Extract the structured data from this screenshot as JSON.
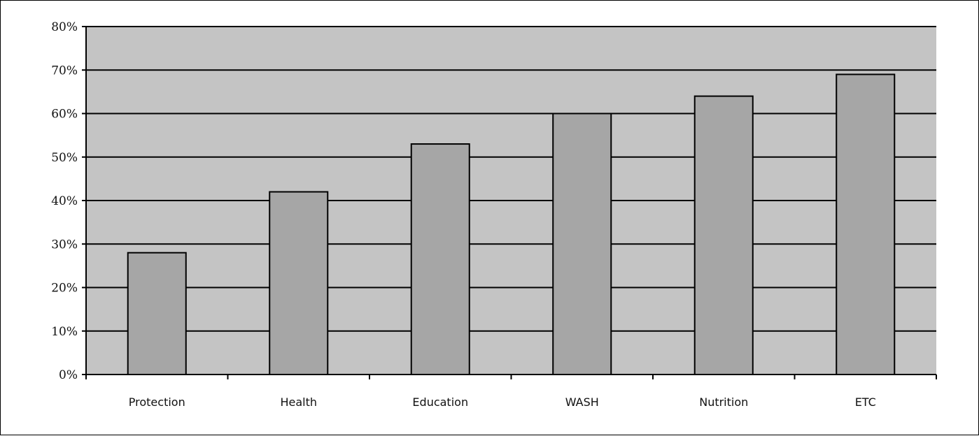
{
  "chart_data": {
    "type": "bar",
    "categories": [
      "Protection",
      "Health",
      "Education",
      "WASH",
      "Nutrition",
      "ETC"
    ],
    "values": [
      28,
      42,
      53,
      60,
      64,
      69
    ],
    "ylim": [
      0,
      80
    ],
    "yticks": [
      0,
      10,
      20,
      30,
      40,
      50,
      60,
      70,
      80
    ],
    "ytick_suffix": "%",
    "grid": true,
    "legend": "none",
    "colors": {
      "plot_background": "#c4c4c4",
      "bar_fill": "#a6a6a6",
      "bar_stroke": "#000000",
      "grid_line": "#000000"
    }
  }
}
